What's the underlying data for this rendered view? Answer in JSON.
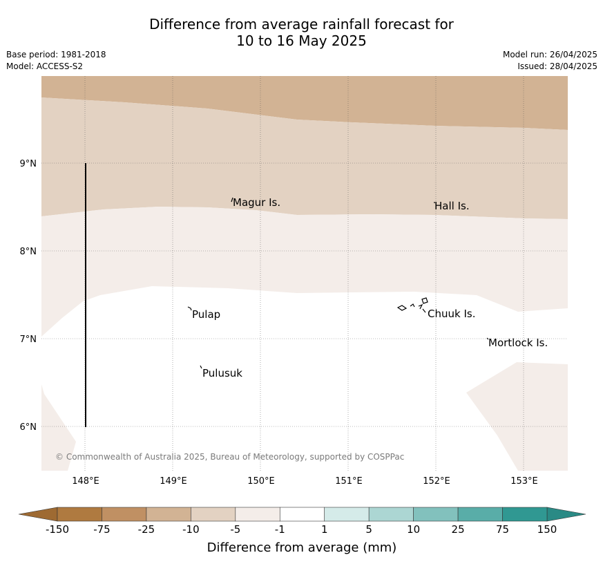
{
  "title_line1": "Difference from average rainfall forecast for",
  "title_line2": "10 to 16 May 2025",
  "base_period": "Base period: 1981-2018",
  "model": "Model: ACCESS-S2",
  "model_run": "Model run: 26/04/2025",
  "issued": "Issued: 28/04/2025",
  "map": {
    "lon_ticks": [
      "148°E",
      "149°E",
      "150°E",
      "151°E",
      "152°E",
      "153°E"
    ],
    "lat_ticks": [
      "9°N",
      "8°N",
      "7°N",
      "6°N"
    ],
    "places": [
      {
        "name": "Magur Is."
      },
      {
        "name": "Hall Is."
      },
      {
        "name": "Pulap"
      },
      {
        "name": "Chuuk Is."
      },
      {
        "name": "Mortlock Is."
      },
      {
        "name": "Pulusuk"
      }
    ],
    "copyright": "© Commonwealth of Australia 2025, Bureau of Meteorology, supported by COSPPac"
  },
  "colorbar": {
    "title": "Difference from average (mm)",
    "labels": [
      "-150",
      "-75",
      "-25",
      "-10",
      "-5",
      "-1",
      "1",
      "5",
      "10",
      "25",
      "75",
      "150"
    ],
    "colors": [
      "#af7a40",
      "#c09063",
      "#d2b394",
      "#e3d2c2",
      "#f4ede9",
      "#ffffff",
      "#d5ebe9",
      "#acd6d3",
      "#82c1bd",
      "#59ada8",
      "#309892"
    ],
    "under_color": "#9e6a32",
    "over_color": "#2a8a85"
  }
}
